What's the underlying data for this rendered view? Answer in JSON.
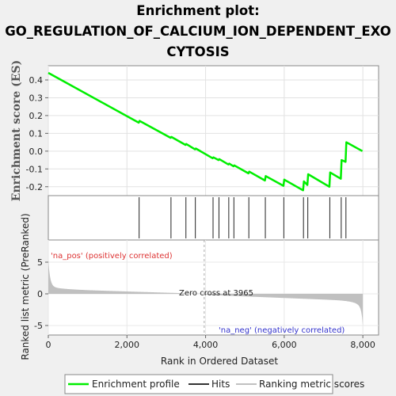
{
  "chart_data": {
    "type": "line",
    "title_lines": [
      "Enrichment plot:",
      "GO_REGULATION_OF_CALCIUM_ION_DEPENDENT_EXO",
      "CYTOSIS"
    ],
    "es_panel": {
      "ylabel": "Enrichment score (ES)",
      "ylim": [
        -0.25,
        0.48
      ],
      "yticks": [
        0.4,
        0.3,
        0.2,
        0.1,
        0.0,
        -0.1,
        -0.2
      ],
      "ytick_labels": [
        "0.4",
        "0.3",
        "0.2",
        "0.1",
        "0.0",
        "-0.1",
        "-0.2"
      ],
      "color": "#00ee00",
      "series": [
        {
          "x": [
            0,
            2300,
            2320,
            3110,
            3130,
            3490,
            3510,
            3730,
            3750,
            4180,
            4200,
            4330,
            4350,
            4580,
            4600,
            4710,
            4730,
            5090,
            5110,
            5510,
            5530,
            5980,
            6000,
            6480,
            6500,
            6590,
            6610,
            7150,
            7170,
            7440,
            7460,
            7560,
            7580,
            7990
          ],
          "y": [
            0.44,
            0.16,
            0.17,
            0.075,
            0.08,
            0.035,
            0.04,
            0.01,
            0.015,
            -0.04,
            -0.035,
            -0.05,
            -0.045,
            -0.075,
            -0.07,
            -0.085,
            -0.08,
            -0.125,
            -0.115,
            -0.165,
            -0.14,
            -0.195,
            -0.16,
            -0.22,
            -0.17,
            -0.19,
            -0.13,
            -0.2,
            -0.12,
            -0.155,
            -0.05,
            -0.06,
            0.05,
            0.0
          ]
        }
      ]
    },
    "hits_panel": {
      "hit_positions": [
        2310,
        3120,
        3500,
        3740,
        4190,
        4340,
        4590,
        4720,
        5100,
        5520,
        5990,
        6490,
        6600,
        7160,
        7450,
        7570
      ]
    },
    "rank_panel": {
      "ylabel": "Ranked list metric (PreRanked)",
      "ylim": [
        -6.5,
        8.5
      ],
      "yticks": [
        5,
        0,
        -5
      ],
      "ytick_labels": [
        "5",
        "0",
        "-5"
      ],
      "pos_label": "'na_pos' (positively correlated)",
      "neg_label": "'na_neg' (negatively correlated)",
      "zero_cross_label": "Zero cross at 3965",
      "zero_cross": 3965
    },
    "xlabel": "Rank in Ordered Dataset",
    "xlim": [
      0,
      8400
    ],
    "xticks": [
      0,
      2000,
      4000,
      6000,
      8000
    ],
    "xtick_labels": [
      "0",
      "2,000",
      "4,000",
      "6,000",
      "8,000"
    ],
    "n_genes": 8000,
    "legend": {
      "placement": "bottom",
      "items": [
        {
          "label": "Enrichment profile",
          "color": "#00ee00"
        },
        {
          "label": "Hits",
          "color": "#333333"
        },
        {
          "label": "Ranking metric scores",
          "color": "#c0c0c0"
        }
      ]
    }
  }
}
